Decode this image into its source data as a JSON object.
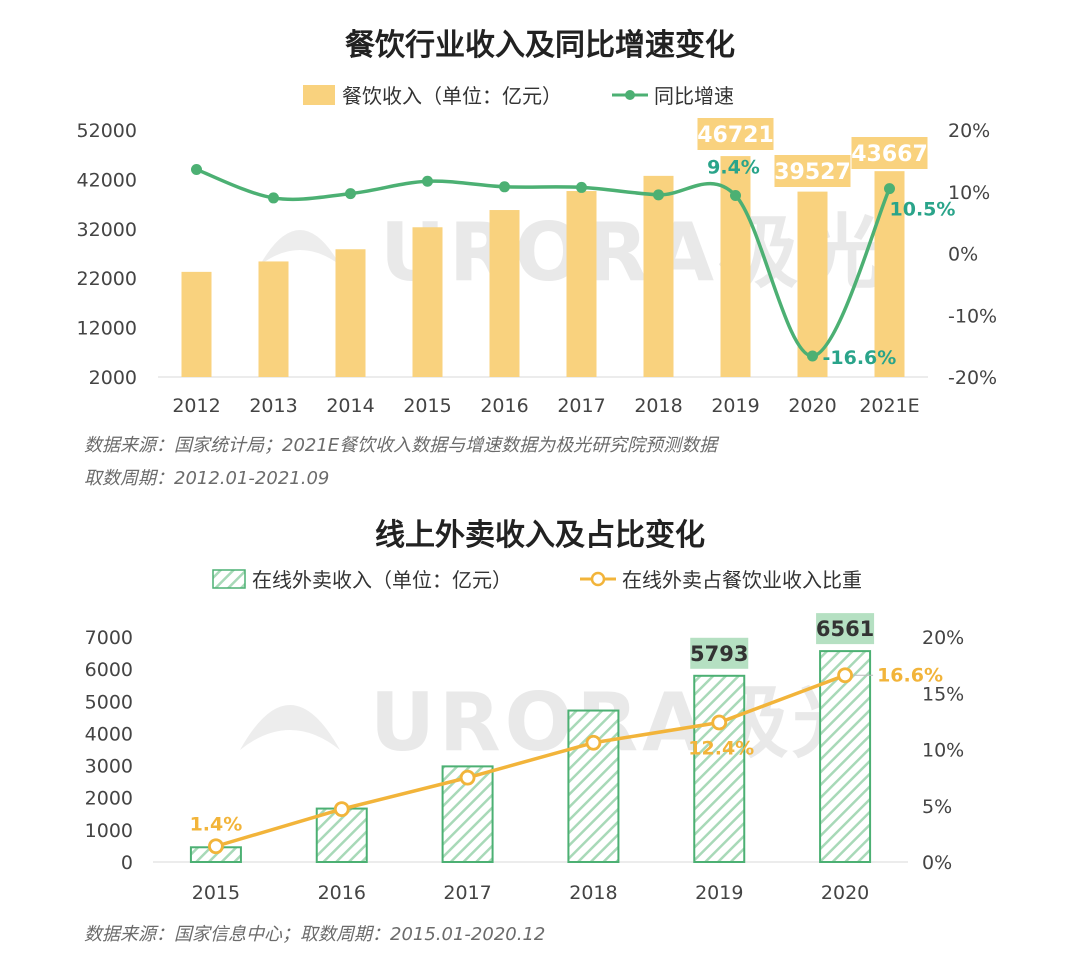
{
  "chart_data": [
    {
      "type": "bar+line",
      "title": "餐饮行业收入及同比增速变化",
      "categories": [
        "2012",
        "2013",
        "2014",
        "2015",
        "2016",
        "2017",
        "2018",
        "2019",
        "2020",
        "2021E"
      ],
      "series": [
        {
          "name": "餐饮收入（单位：亿元）",
          "type": "bar",
          "axis": "left",
          "values": [
            23283,
            25392,
            27860,
            32310,
            35799,
            39644,
            42716,
            46721,
            39527,
            43667
          ],
          "labeled_values": [
            "46721",
            "39527",
            "43667"
          ],
          "labeled_indexes": [
            7,
            8,
            9
          ],
          "color": "#F9D27E"
        },
        {
          "name": "同比增速",
          "type": "line",
          "axis": "right",
          "values": [
            13.6,
            9.0,
            9.7,
            11.7,
            10.8,
            10.7,
            9.5,
            9.4,
            -16.6,
            10.5
          ],
          "labeled_values": [
            "9.4%",
            "-16.6%",
            "10.5%"
          ],
          "labeled_indexes": [
            7,
            8,
            9
          ],
          "color": "#4CB073"
        }
      ],
      "left_ticks": [
        "52000",
        "42000",
        "32000",
        "22000",
        "12000",
        "2000"
      ],
      "right_ticks": [
        "20%",
        "10%",
        "0%",
        "-10%",
        "-20%"
      ],
      "ylim_left": [
        2000,
        52000
      ],
      "ylim_right": [
        -20,
        20
      ],
      "legend_position": "top",
      "watermark": "URORA极光",
      "source_lines": [
        "数据来源：国家统计局；2021E餐饮收入数据与增速数据为极光研究院预测数据",
        "取数周期：2012.01-2021.09"
      ]
    },
    {
      "type": "bar+line",
      "title": "线上外卖收入及占比变化",
      "categories": [
        "2015",
        "2016",
        "2017",
        "2018",
        "2019",
        "2020"
      ],
      "series": [
        {
          "name": "在线外卖收入（单位：亿元）",
          "type": "bar",
          "axis": "left",
          "values": [
            458,
            1662,
            2975,
            4712,
            5793,
            6561
          ],
          "labeled_values": [
            "5793",
            "6561"
          ],
          "labeled_indexes": [
            4,
            5
          ],
          "color": "#4CB073",
          "fill": "diagonal-hatch"
        },
        {
          "name": "在线外卖占餐饮业收入比重",
          "type": "line",
          "axis": "right",
          "values": [
            1.4,
            4.7,
            7.5,
            10.6,
            12.4,
            16.6
          ],
          "labeled_values": [
            "1.4%",
            "12.4%",
            "16.6%"
          ],
          "labeled_indexes": [
            0,
            4,
            5
          ],
          "color": "#F2B43A"
        }
      ],
      "left_ticks": [
        "7000",
        "6000",
        "5000",
        "4000",
        "3000",
        "2000",
        "1000",
        "0"
      ],
      "right_ticks": [
        "20%",
        "15%",
        "10%",
        "5%",
        "0%"
      ],
      "ylim_left": [
        0,
        7000
      ],
      "ylim_right": [
        0,
        20
      ],
      "legend_position": "top",
      "watermark": "URORA极光",
      "source_lines": [
        "数据来源：国家信息中心；取数周期：2015.01-2020.12"
      ]
    }
  ]
}
